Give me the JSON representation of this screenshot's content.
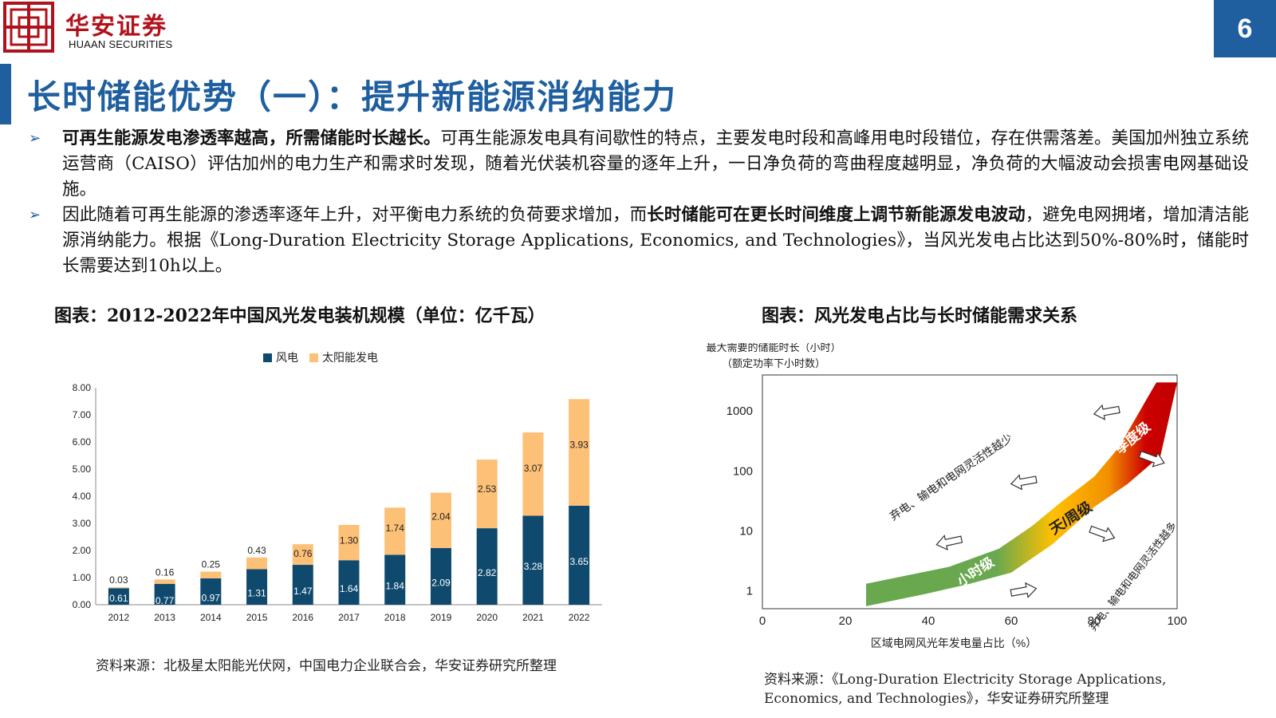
{
  "header": {
    "logo_cn": "华安证券",
    "logo_en": "HUAAN SECURITIES",
    "page_number": "6"
  },
  "title": "长时储能优势（一）：提升新能源消纳能力",
  "bullets": [
    {
      "bold": "可再生能源发电渗透率越高，所需储能时长越长。",
      "text": "可再生能源发电具有间歇性的特点，主要发电时段和高峰用电时段错位，存在供需落差。美国加州独立系统运营商（CAISO）评估加州的电力生产和需求时发现，随着光伏装机容量的逐年上升，一日净负荷的弯曲程度越明显，净负荷的大幅波动会损害电网基础设施。"
    },
    {
      "pre": "因此随着可再生能源的渗透率逐年上升，对平衡电力系统的负荷要求增加，而",
      "bold": "长时储能可在更长时间维度上调节新能源发电波动",
      "text": "，避免电网拥堵，增加清洁能源消纳能力。根据《Long-Duration Electricity Storage Applications, Economics, and Technologies》，当风光发电占比达到50%-80%时，储能时长需要达到10h以上。"
    }
  ],
  "left_chart": {
    "caption": "图表：2012-2022年中国风光发电装机规模（单位：亿千瓦）",
    "source": "资料来源：北极星太阳能光伏网，中国电力企业联合会，华安证券研究所整理"
  },
  "right_chart": {
    "caption": "图表：风光发电占比与长时储能需求关系",
    "source_line1": "资料来源：《Long-Duration Electricity Storage Applications,",
    "source_line2": "Economics, and Technologies》，华安证券研究所整理"
  },
  "chart_data": [
    {
      "type": "bar",
      "stacked": true,
      "categories": [
        "2012",
        "2013",
        "2014",
        "2015",
        "2016",
        "2017",
        "2018",
        "2019",
        "2020",
        "2021",
        "2022"
      ],
      "series": [
        {
          "name": "风电",
          "color": "#0f4a6e",
          "values": [
            0.61,
            0.77,
            0.97,
            1.31,
            1.47,
            1.64,
            1.84,
            2.09,
            2.82,
            3.28,
            3.65
          ],
          "labels": [
            "0.61",
            "0.77",
            "0.97",
            "1.31",
            "1.47",
            "1.64",
            "1.84",
            "2.09",
            "2.82",
            "3.28",
            "3.65"
          ]
        },
        {
          "name": "太阳能发电",
          "color": "#fcc076",
          "values": [
            0.03,
            0.16,
            0.25,
            0.43,
            0.76,
            1.3,
            1.74,
            2.04,
            2.53,
            3.07,
            3.93
          ],
          "labels": [
            "0.03",
            "0.16",
            "0.25",
            "0.43",
            "0.76",
            "1.30",
            "1.74",
            "2.04",
            "2.53",
            "3.07",
            "3.93"
          ]
        }
      ],
      "yticks": [
        "0.00",
        "1.00",
        "2.00",
        "3.00",
        "4.00",
        "5.00",
        "6.00",
        "7.00",
        "8.00"
      ],
      "ylim": [
        0,
        8
      ],
      "legend_position": "top-center",
      "grid": false
    },
    {
      "type": "area",
      "ylabel_line1": "最大需要的储能时长（小时）",
      "ylabel_line2": "（额定功率下小时数）",
      "xlabel": "区域电网风光年发电量占比（%）",
      "xticks": [
        "0",
        "20",
        "40",
        "60",
        "80",
        "100"
      ],
      "yticks": [
        "1",
        "10",
        "100",
        "1000"
      ],
      "xlim": [
        0,
        100
      ],
      "y_scale": "log",
      "ylim": [
        0.5,
        4000
      ],
      "band_upper": [
        [
          25,
          1.3
        ],
        [
          45,
          2.5
        ],
        [
          57,
          5
        ],
        [
          65,
          12
        ],
        [
          72,
          30
        ],
        [
          80,
          80
        ],
        [
          86,
          250
        ],
        [
          91,
          1000
        ],
        [
          95,
          3000
        ],
        [
          100,
          3000
        ]
      ],
      "band_lower": [
        [
          100,
          3000
        ],
        [
          96,
          180
        ],
        [
          88,
          60
        ],
        [
          80,
          25
        ],
        [
          70,
          6
        ],
        [
          60,
          2
        ],
        [
          50,
          1.3
        ],
        [
          40,
          0.9
        ],
        [
          25,
          0.55
        ]
      ],
      "gradient_colors": [
        "#6aa84f",
        "#ffc000",
        "#cc0000"
      ],
      "zone_labels": [
        "小时级",
        "天/周级",
        "季度级"
      ],
      "annotations": [
        "弃电、输电和电网灵活性越少",
        "弃电、输电和电网灵活性越多"
      ]
    }
  ]
}
